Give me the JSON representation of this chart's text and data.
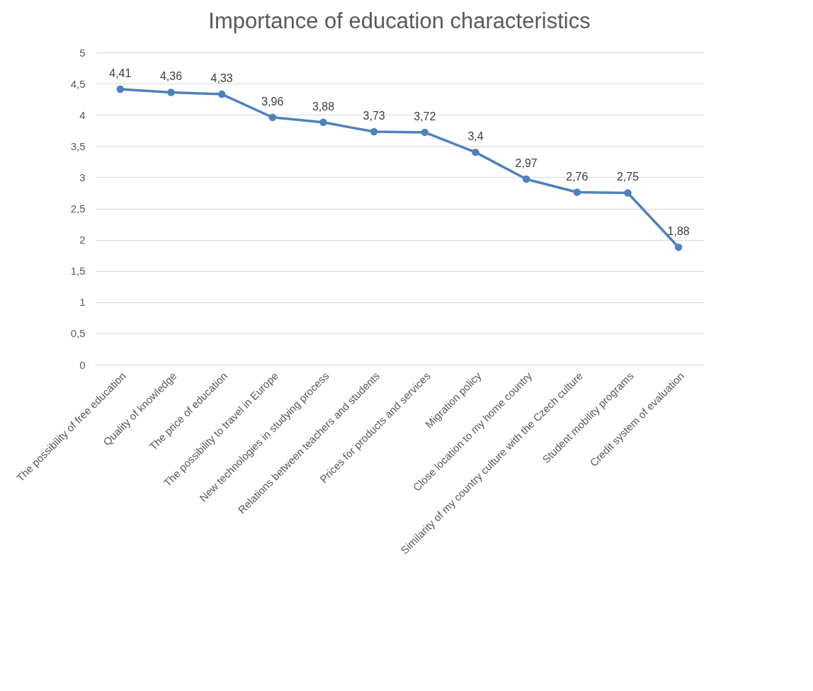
{
  "chart_data": {
    "type": "line",
    "title": "Importance of education characteristics",
    "categories": [
      "The possibility of free education",
      "Quality of knowledge",
      "The price of education",
      "The possibility to travel in Europe",
      "New technologies in studying process",
      "Relations between teachers and students",
      "Prices for products and services",
      "Migration policy",
      "Close location to my home country",
      "Similarity of my country culture with the Czech culture",
      "Student mobility programs",
      "Credit system of evaluation"
    ],
    "series": [
      {
        "color": "#4f81bd",
        "values": [
          4.41,
          4.36,
          4.33,
          3.96,
          3.88,
          3.73,
          3.72,
          3.4,
          2.97,
          2.76,
          2.75,
          1.88
        ],
        "value_labels": [
          "4,41",
          "4,36",
          "4,33",
          "3,96",
          "3,88",
          "3,73",
          "3,72",
          "3,4",
          "2,97",
          "2,76",
          "2,75",
          "1,88"
        ]
      }
    ],
    "ylim": [
      0,
      5
    ],
    "yticks": [
      0,
      {
        "value": 0.5,
        "label": "0,5"
      },
      1,
      {
        "value": 1.5,
        "label": "1,5"
      },
      2,
      {
        "value": 2.5,
        "label": "2,5"
      },
      3,
      {
        "value": 3.5,
        "label": "3,5"
      },
      4,
      {
        "value": 4.5,
        "label": "4,5"
      },
      5
    ],
    "grid": "y",
    "marker": "circle",
    "line_style": "solid"
  }
}
